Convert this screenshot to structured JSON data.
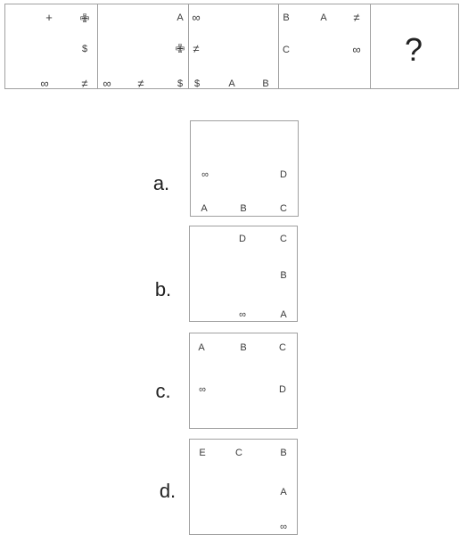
{
  "sequence": {
    "cells": [
      {
        "symbols": [
          {
            "text": "+",
            "name": "plus-icon"
          },
          {
            "text": "✙",
            "name": "cross-icon"
          },
          {
            "text": "$",
            "name": "dollar-icon"
          },
          {
            "text": "∞",
            "name": "infinity-icon"
          },
          {
            "text": "≠",
            "name": "not-equal-icon"
          }
        ]
      },
      {
        "symbols": [
          {
            "text": "A",
            "name": "letter-a"
          },
          {
            "text": "✙",
            "name": "cross-icon"
          },
          {
            "text": "∞",
            "name": "infinity-icon"
          },
          {
            "text": "≠",
            "name": "not-equal-icon"
          },
          {
            "text": "$",
            "name": "dollar-icon"
          }
        ]
      },
      {
        "symbols": [
          {
            "text": "∞",
            "name": "infinity-icon"
          },
          {
            "text": "≠",
            "name": "not-equal-icon"
          },
          {
            "text": "$",
            "name": "dollar-icon"
          },
          {
            "text": "A",
            "name": "letter-a"
          },
          {
            "text": "B",
            "name": "letter-b"
          }
        ]
      },
      {
        "symbols": [
          {
            "text": "B",
            "name": "letter-b"
          },
          {
            "text": "A",
            "name": "letter-a"
          },
          {
            "text": "≠",
            "name": "not-equal-icon"
          },
          {
            "text": "C",
            "name": "letter-c"
          },
          {
            "text": "∞",
            "name": "infinity-icon"
          }
        ]
      },
      {
        "question": "?"
      }
    ]
  },
  "options": [
    {
      "label": "a.",
      "symbols": [
        {
          "text": "∞",
          "name": "infinity-icon"
        },
        {
          "text": "D",
          "name": "letter-d"
        },
        {
          "text": "A",
          "name": "letter-a"
        },
        {
          "text": "B",
          "name": "letter-b"
        },
        {
          "text": "C",
          "name": "letter-c"
        }
      ]
    },
    {
      "label": "b.",
      "symbols": [
        {
          "text": "D",
          "name": "letter-d"
        },
        {
          "text": "C",
          "name": "letter-c"
        },
        {
          "text": "B",
          "name": "letter-b"
        },
        {
          "text": "∞",
          "name": "infinity-icon"
        },
        {
          "text": "A",
          "name": "letter-a"
        }
      ]
    },
    {
      "label": "c.",
      "symbols": [
        {
          "text": "A",
          "name": "letter-a"
        },
        {
          "text": "B",
          "name": "letter-b"
        },
        {
          "text": "C",
          "name": "letter-c"
        },
        {
          "text": "∞",
          "name": "infinity-icon"
        },
        {
          "text": "D",
          "name": "letter-d"
        }
      ]
    },
    {
      "label": "d.",
      "symbols": [
        {
          "text": "E",
          "name": "letter-e"
        },
        {
          "text": "C",
          "name": "letter-c"
        },
        {
          "text": "B",
          "name": "letter-b"
        },
        {
          "text": "A",
          "name": "letter-a"
        },
        {
          "text": "∞",
          "name": "infinity-icon"
        }
      ]
    }
  ]
}
